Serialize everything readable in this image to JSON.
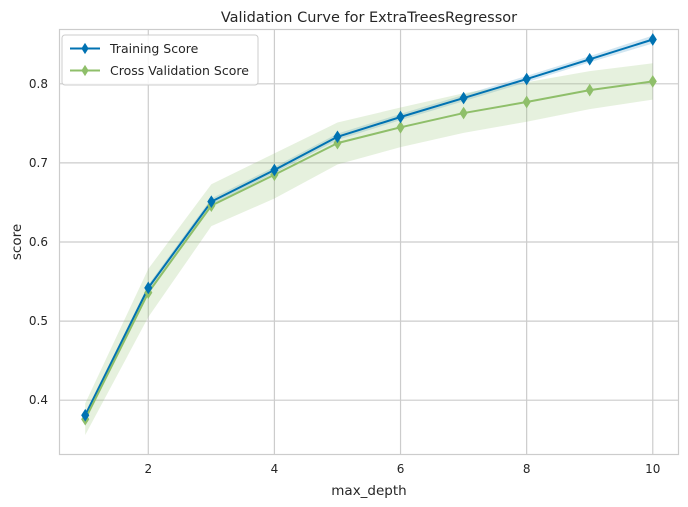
{
  "chart_data": {
    "type": "line",
    "title": "Validation Curve for ExtraTreesRegressor",
    "xlabel": "max_depth",
    "ylabel": "score",
    "xlim": [
      0.6,
      10.4
    ],
    "ylim": [
      0.332,
      0.868
    ],
    "xticks": [
      2,
      4,
      6,
      8,
      10
    ],
    "yticks": [
      0.4,
      0.5,
      0.6,
      0.7,
      0.8
    ],
    "grid": true,
    "legend_position": "top-left",
    "x": [
      1,
      2,
      3,
      4,
      5,
      6,
      7,
      8,
      9,
      10
    ],
    "series": [
      {
        "name": "Training Score",
        "color": "#0072b2",
        "marker": "diamond",
        "values": [
          0.381,
          0.542,
          0.651,
          0.691,
          0.733,
          0.758,
          0.782,
          0.806,
          0.831,
          0.856
        ],
        "band_lower": [
          0.378,
          0.538,
          0.647,
          0.687,
          0.729,
          0.754,
          0.778,
          0.802,
          0.827,
          0.851
        ],
        "band_upper": [
          0.384,
          0.546,
          0.655,
          0.695,
          0.737,
          0.762,
          0.786,
          0.81,
          0.835,
          0.861
        ]
      },
      {
        "name": "Cross Validation Score",
        "color": "#8fbf6a",
        "marker": "diamond",
        "values": [
          0.376,
          0.536,
          0.646,
          0.685,
          0.725,
          0.745,
          0.763,
          0.777,
          0.792,
          0.803
        ],
        "band_lower": [
          0.356,
          0.505,
          0.62,
          0.655,
          0.698,
          0.72,
          0.738,
          0.752,
          0.768,
          0.78
        ],
        "band_upper": [
          0.396,
          0.566,
          0.673,
          0.712,
          0.751,
          0.77,
          0.788,
          0.802,
          0.816,
          0.826
        ]
      }
    ]
  }
}
